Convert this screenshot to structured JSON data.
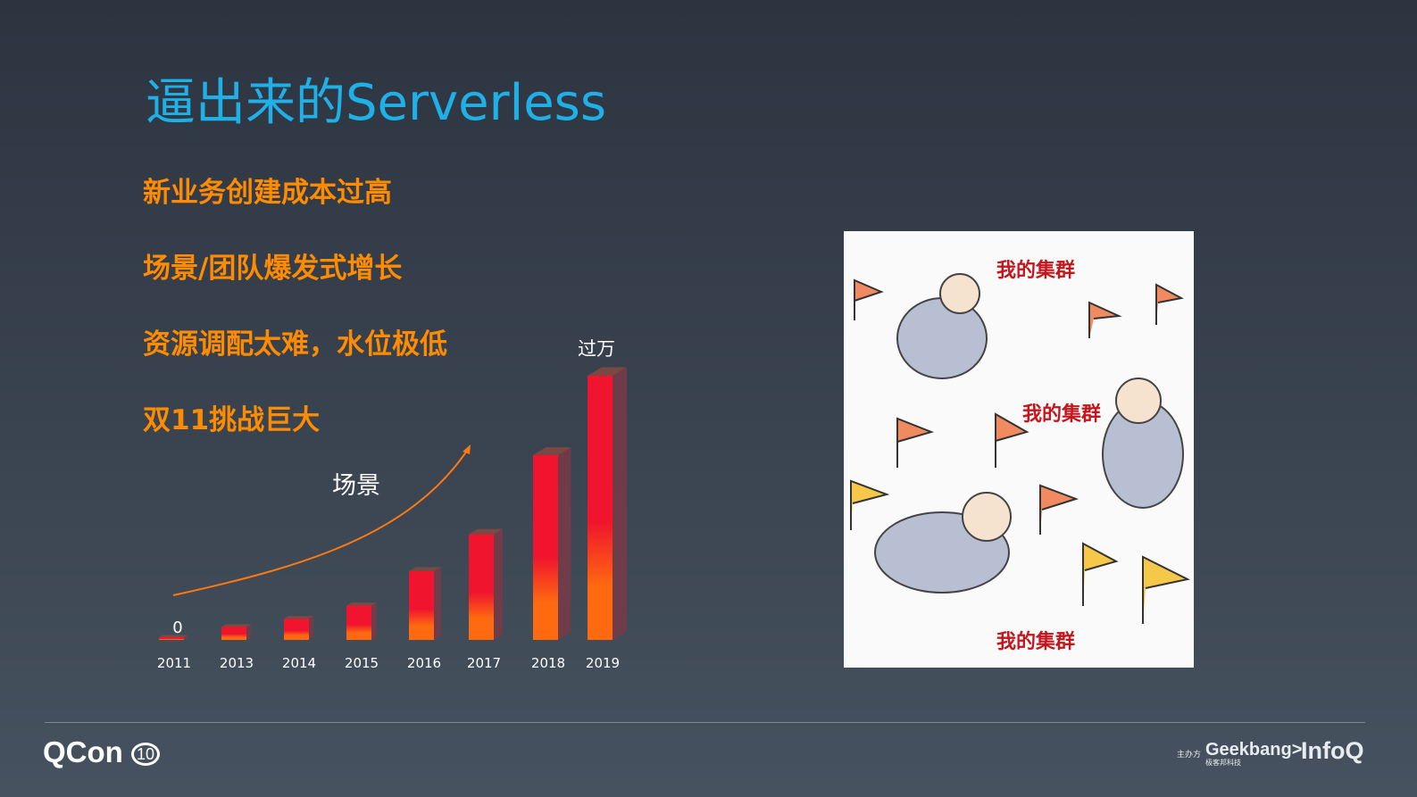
{
  "slide": {
    "title": "逼出来的Serverless",
    "bullets": [
      "新业务创建成本过高",
      "场景/团队爆发式增长",
      "资源调配太难，水位极低",
      "双11挑战巨大"
    ]
  },
  "chart_data": {
    "type": "bar",
    "categories": [
      "2011",
      "2013",
      "2014",
      "2015",
      "2016",
      "2017",
      "2018",
      "2019"
    ],
    "values": [
      0,
      5,
      8,
      13,
      26,
      40,
      70,
      100
    ],
    "value_note_relative": true,
    "data_labels": {
      "first": "0",
      "last": "过万"
    },
    "annotation": "场景",
    "trend_arrow": true,
    "colors": {
      "top": "#f0142e",
      "bottom": "#ff6a10",
      "side": "#7a3a48"
    },
    "grid": false
  },
  "illustration": {
    "labels": [
      "我的集群",
      "我的集群",
      "我的集群"
    ]
  },
  "footer": {
    "brand": "QCon",
    "brand_mark": "10",
    "sponsor_label": "主办方",
    "geekbang": "Geekbang>.",
    "geekbang_cn": "极客邦科技",
    "infoq": "InfoQ"
  }
}
